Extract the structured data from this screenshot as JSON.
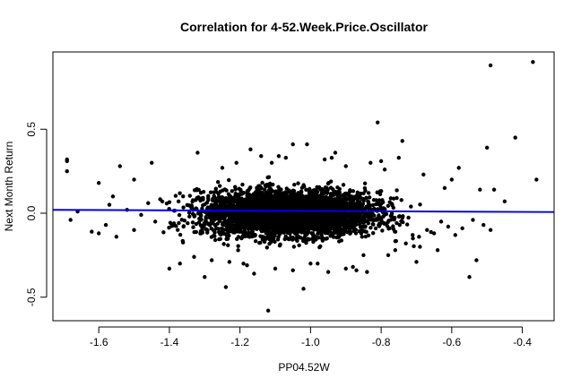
{
  "chart_data": {
    "type": "scatter",
    "title": "Correlation for 4-52.Week.Price.Oscillator",
    "xlabel": "PP04.52W",
    "ylabel": "Next Month Return",
    "xlim": [
      -1.73,
      -0.31
    ],
    "ylim": [
      -0.64,
      0.96
    ],
    "x_ticks": [
      -1.6,
      -1.4,
      -1.2,
      -1.0,
      -0.8,
      -0.6,
      -0.4
    ],
    "x_tick_labels": [
      "-1.6",
      "-1.4",
      "-1.2",
      "-1.0",
      "-0.8",
      "-0.6",
      "-0.4"
    ],
    "y_ticks": [
      -0.5,
      0.0,
      0.5
    ],
    "y_tick_labels": [
      "-0.5",
      "0.0",
      "0.5"
    ],
    "grid": false,
    "point_color": "#000000",
    "series": [
      {
        "x": [
          -0.37,
          -0.49,
          -0.42,
          -0.36,
          -0.5,
          -0.45,
          -0.81,
          -0.74,
          -1.05,
          -1.01,
          -1.32,
          -0.53,
          -0.55,
          -1.69,
          -1.69,
          -1.69,
          -1.6,
          -1.54,
          -1.5,
          -1.45,
          -1.25,
          -0.75,
          -0.8,
          -0.62,
          -0.6,
          -0.58,
          -0.52,
          -0.48,
          -1.19,
          -1.1,
          -1.05,
          -0.98,
          -0.95,
          -0.9,
          -0.87,
          -0.85,
          -1.68,
          -1.66,
          -1.62,
          -1.58,
          -1.56,
          -1.55,
          -1.52,
          -1.5,
          -1.48,
          -1.46,
          -1.44,
          -1.42,
          -1.36,
          -1.34,
          -1.31,
          -1.29,
          -1.27,
          -0.78,
          -0.76,
          -0.73,
          -0.71,
          -0.69,
          -0.67,
          -0.65,
          -0.63,
          -0.61,
          -0.59,
          -0.57,
          -0.54,
          -0.51,
          -0.49,
          -1.12,
          -1.02,
          -1.24,
          -1.3,
          -0.88,
          -0.84,
          -0.7,
          -0.64,
          -1.21,
          -1.14,
          -1.07,
          -0.96,
          -0.9,
          -0.79,
          -1.4,
          -1.37,
          -1.33,
          -1.28,
          -1.18,
          -0.83,
          -0.68,
          -1.11,
          -0.93,
          -1.6,
          -1.57,
          -1.17,
          -1.23,
          -1.16,
          -1.09,
          -1.0,
          -0.94
        ],
        "y": [
          0.9,
          0.88,
          0.45,
          0.2,
          0.39,
          0.07,
          0.54,
          0.43,
          0.41,
          0.41,
          0.36,
          -0.28,
          -0.38,
          0.32,
          0.31,
          0.25,
          0.18,
          0.28,
          0.2,
          0.3,
          0.27,
          0.33,
          0.31,
          0.15,
          0.2,
          0.27,
          0.14,
          0.14,
          -0.3,
          -0.33,
          -0.34,
          -0.3,
          -0.35,
          -0.33,
          -0.34,
          -0.25,
          -0.04,
          0.01,
          -0.11,
          -0.07,
          0.1,
          -0.14,
          0.02,
          -0.1,
          -0.01,
          0.06,
          -0.05,
          0.07,
          -0.08,
          0.04,
          -0.12,
          0.09,
          -0.16,
          -0.25,
          -0.22,
          -0.18,
          -0.15,
          -0.2,
          -0.1,
          -0.12,
          -0.05,
          -0.08,
          -0.13,
          -0.09,
          -0.04,
          -0.07,
          -0.1,
          -0.58,
          -0.45,
          -0.44,
          -0.38,
          -0.32,
          -0.35,
          -0.29,
          -0.22,
          0.3,
          0.34,
          0.33,
          0.32,
          0.28,
          0.26,
          -0.33,
          -0.3,
          -0.26,
          -0.28,
          -0.31,
          0.3,
          0.23,
          0.3,
          0.36,
          -0.12,
          0.05,
          0.38,
          -0.29,
          -0.36,
          0.34,
          -0.3,
          0.33
        ]
      }
    ],
    "cloud": {
      "center_x": -1.06,
      "spread_x": 0.11,
      "center_y": 0.0,
      "spread_y": 0.065,
      "count": 4200
    },
    "regression_line": {
      "x": [
        -1.73,
        -0.31
      ],
      "y": [
        0.02,
        0.007
      ],
      "color": "#0000ee"
    }
  }
}
